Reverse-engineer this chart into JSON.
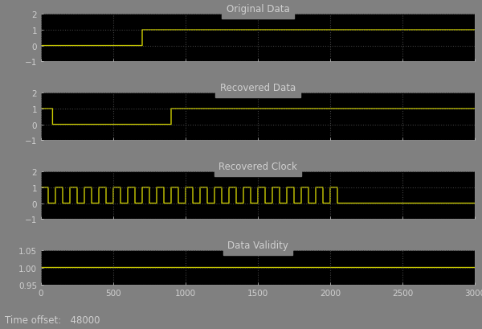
{
  "title1": "Original Data",
  "title2": "Recovered Data",
  "title3": "Recovered Clock",
  "title4": "Data Validity",
  "time_offset_label": "Time offset:   48000",
  "xlim": [
    0,
    3000
  ],
  "ylim1": [
    -1,
    2
  ],
  "ylim2": [
    -1,
    2
  ],
  "ylim3": [
    -1,
    2
  ],
  "ylim4": [
    0.95,
    1.05
  ],
  "yticks1": [
    -1,
    0,
    1,
    2
  ],
  "yticks2": [
    -1,
    0,
    1,
    2
  ],
  "yticks3": [
    -1,
    0,
    1,
    2
  ],
  "yticks4": [
    0.95,
    1.0,
    1.05
  ],
  "xticks": [
    0,
    500,
    1000,
    1500,
    2000,
    2500,
    3000
  ],
  "bg_color": "#000000",
  "fig_bg_color": "#808080",
  "line_color": "#cccc00",
  "grid_color": "#404040",
  "text_color": "#d0d0d0",
  "title_color": "#d0d0d0",
  "clock_period": 100,
  "clock_duty": 0.5,
  "clock_end": 2050,
  "orig_step": 700,
  "recovered_high1_end": 80,
  "recovered_low_end": 900,
  "title_fontsize": 8.5,
  "tick_fontsize": 7.5
}
